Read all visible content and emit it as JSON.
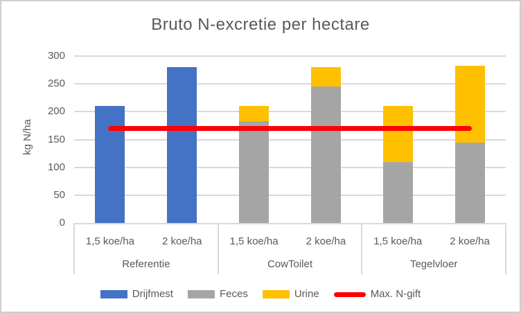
{
  "chart_data": {
    "type": "bar",
    "stacked": true,
    "title": "Bruto N-excretie per hectare",
    "xlabel": "",
    "ylabel": "kg N/ha",
    "ylim": [
      0,
      300
    ],
    "yticks": [
      0,
      50,
      100,
      150,
      200,
      250,
      300
    ],
    "grid": true,
    "legend_position": "bottom",
    "series_colors": {
      "Drijfmest": "#4472C4",
      "Feces": "#A5A5A5",
      "Urine": "#FFC000"
    },
    "groups": [
      {
        "label": "Referentie",
        "bars": [
          {
            "label": "1,5 koe/ha",
            "segments": [
              {
                "series": "Drijfmest",
                "value": 210
              }
            ]
          },
          {
            "label": "2 koe/ha",
            "segments": [
              {
                "series": "Drijfmest",
                "value": 280
              }
            ]
          }
        ]
      },
      {
        "label": "CowToilet",
        "bars": [
          {
            "label": "1,5 koe/ha",
            "segments": [
              {
                "series": "Feces",
                "value": 183
              },
              {
                "series": "Urine",
                "value": 27
              }
            ]
          },
          {
            "label": "2 koe/ha",
            "segments": [
              {
                "series": "Feces",
                "value": 245
              },
              {
                "series": "Urine",
                "value": 35
              }
            ]
          }
        ]
      },
      {
        "label": "Tegelvloer",
        "bars": [
          {
            "label": "1,5 koe/ha",
            "segments": [
              {
                "series": "Feces",
                "value": 110
              },
              {
                "series": "Urine",
                "value": 100
              }
            ]
          },
          {
            "label": "2 koe/ha",
            "segments": [
              {
                "series": "Feces",
                "value": 145
              },
              {
                "series": "Urine",
                "value": 137
              }
            ]
          }
        ]
      }
    ],
    "reference_line": {
      "label": "Max. N-gift",
      "value": 170,
      "color": "#FF0000"
    },
    "legend": [
      {
        "label": "Drijfmest",
        "color": "#4472C4",
        "marker": "rect"
      },
      {
        "label": "Feces",
        "color": "#A5A5A5",
        "marker": "rect"
      },
      {
        "label": "Urine",
        "color": "#FFC000",
        "marker": "rect"
      },
      {
        "label": "Max. N-gift",
        "color": "#FF0000",
        "marker": "line"
      }
    ]
  }
}
